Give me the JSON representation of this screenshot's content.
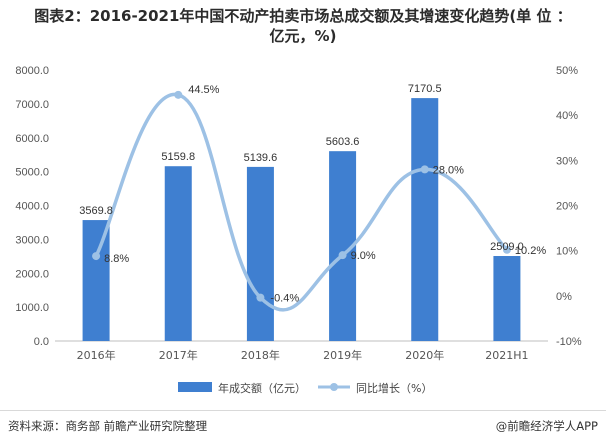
{
  "title_line1": "图表2：2016-2021年中国不动产拍卖市场总成交额及其增速变化趋势(单 位 ：",
  "title_line2": "亿元，%)",
  "footer": {
    "source": "资料来源：商务部 前瞻产业研究院整理",
    "brand": "@前瞻经济学人APP"
  },
  "colors": {
    "bar": "#3F7FD0",
    "line": "#9DC1E5",
    "axis_text": "#555555",
    "grid": "#e2e2e2"
  },
  "chart_data": {
    "type": "bar",
    "categories": [
      "2016年",
      "2017年",
      "2018年",
      "2019年",
      "2020年",
      "2021H1"
    ],
    "series": [
      {
        "name": "年成交额（亿元）",
        "type": "bar",
        "axis": "left",
        "values": [
          3569.8,
          5159.8,
          5139.6,
          5603.6,
          7170.5,
          2509.0
        ],
        "labels": [
          "3569.8",
          "5159.8",
          "5139.6",
          "5603.6",
          "7170.5",
          "2509.0"
        ]
      },
      {
        "name": "同比增长（%）",
        "type": "line",
        "axis": "right",
        "smooth": true,
        "values": [
          8.8,
          44.5,
          -0.4,
          9.0,
          28.0,
          10.2
        ],
        "labels": [
          "8.8%",
          "44.5%",
          "-0.4%",
          "9.0%",
          "28.0%",
          "10.2%"
        ]
      }
    ],
    "y_left": {
      "lim": [
        0,
        8000
      ],
      "ticks": [
        0,
        1000,
        2000,
        3000,
        4000,
        5000,
        6000,
        7000,
        8000
      ],
      "tick_labels": [
        "0.0",
        "1000.0",
        "2000.0",
        "3000.0",
        "4000.0",
        "5000.0",
        "6000.0",
        "7000.0",
        "8000.0"
      ]
    },
    "y_right": {
      "lim": [
        -10,
        50
      ],
      "ticks": [
        -10,
        0,
        10,
        20,
        30,
        40,
        50
      ],
      "tick_labels": [
        "-10%",
        "0%",
        "10%",
        "20%",
        "30%",
        "40%",
        "50%"
      ]
    },
    "grid": false,
    "legend": "bottom"
  }
}
